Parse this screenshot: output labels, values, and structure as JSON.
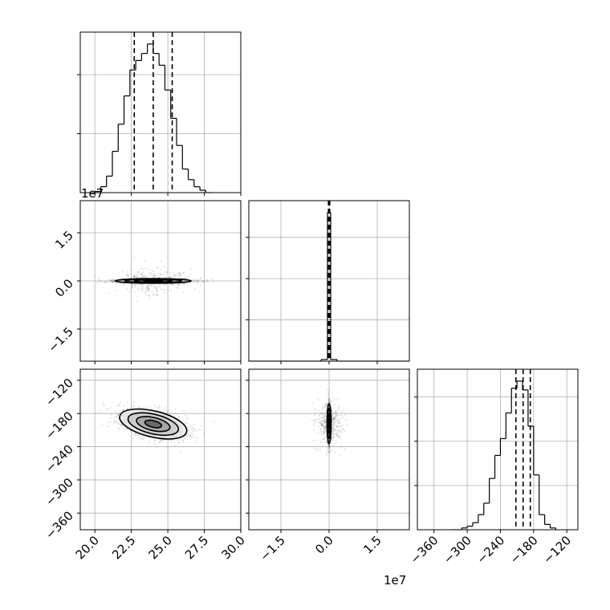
{
  "chart_data": {
    "type": "corner",
    "grid": true,
    "parameters": [
      {
        "range": [
          19,
          30
        ],
        "ticks": [
          20.0,
          22.5,
          25.0,
          27.5,
          30.0
        ],
        "tick_labels": [
          "20.0",
          "22.5",
          "25.0",
          "27.5",
          "30.0"
        ],
        "offset": ""
      },
      {
        "range": [
          -2.5,
          2.5
        ],
        "ticks": [
          -1.5,
          0.0,
          1.5
        ],
        "tick_labels": [
          "−1.5",
          "0.0",
          "1.5"
        ],
        "offset": "1e7"
      },
      {
        "range": [
          -390,
          -100
        ],
        "ticks": [
          -360,
          -300,
          -240,
          -180,
          -120
        ],
        "tick_labels": [
          "−360",
          "−300",
          "−240",
          "−180",
          "−120"
        ],
        "offset": ""
      }
    ],
    "marginals": [
      {
        "param": 0,
        "quantiles": [
          22.7,
          24.0,
          25.3
        ],
        "bin_edges": [
          20.0,
          20.4,
          20.8,
          21.2,
          21.6,
          22.0,
          22.4,
          22.8,
          23.2,
          23.6,
          24.0,
          24.4,
          24.8,
          25.2,
          25.6,
          26.0,
          26.4,
          26.8,
          27.2,
          27.6,
          28.0
        ],
        "counts": [
          1,
          5,
          14,
          35,
          58,
          82,
          104,
          112,
          118,
          126,
          118,
          108,
          87,
          63,
          40,
          20,
          11,
          5,
          2,
          0
        ]
      },
      {
        "param": 1,
        "quantiles": [
          -0.02,
          0.0,
          0.02
        ],
        "bin_edges": [
          -2.5,
          -0.25,
          -0.05,
          0.05,
          0.25,
          2.5
        ],
        "counts": [
          0,
          2,
          180,
          2,
          0
        ]
      },
      {
        "param": 2,
        "quantiles": [
          -212,
          -199,
          -186
        ],
        "bin_edges": [
          -330,
          -320,
          -310,
          -300,
          -290,
          -280,
          -270,
          -260,
          -250,
          -240,
          -230,
          -220,
          -210,
          -200,
          -190,
          -180,
          -170,
          -160,
          -150,
          -140
        ],
        "counts": [
          0,
          0,
          2,
          4,
          8,
          17,
          30,
          58,
          84,
          103,
          132,
          160,
          168,
          158,
          117,
          62,
          17,
          6,
          2
        ]
      }
    ],
    "joints": [
      {
        "x_param": 0,
        "y_param": 1,
        "center": [
          24.0,
          0.0
        ],
        "spread": [
          1.3,
          0.035
        ],
        "corr": 0.0,
        "contours": true
      },
      {
        "x_param": 0,
        "y_param": 2,
        "center": [
          24.0,
          -199.0
        ],
        "spread": [
          1.15,
          13.5
        ],
        "corr": -0.45,
        "contours": true
      },
      {
        "x_param": 1,
        "y_param": 2,
        "center": [
          0.0,
          -198.0
        ],
        "spread": [
          0.03,
          18.0
        ],
        "corr": 0.0,
        "contours": true
      }
    ]
  }
}
